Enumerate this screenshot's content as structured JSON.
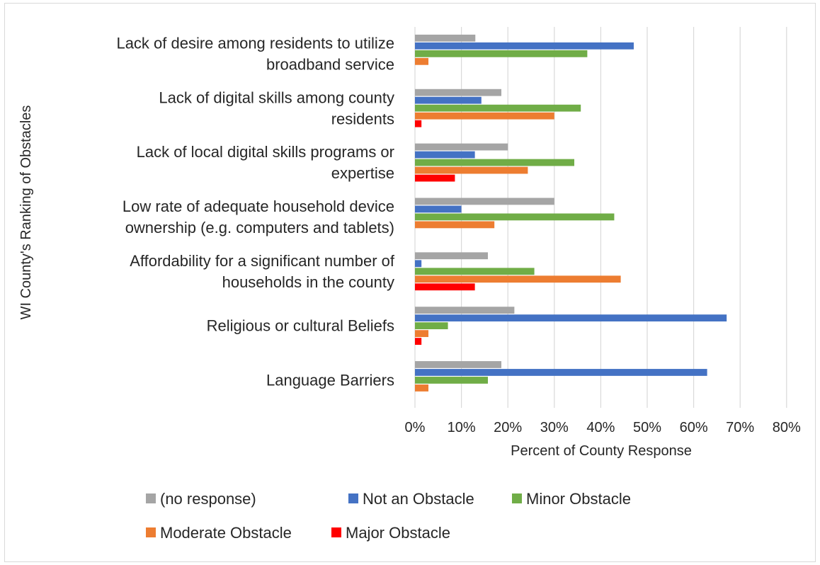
{
  "chart_data": {
    "type": "bar",
    "orientation": "horizontal",
    "title": "",
    "xlabel": "Percent of County Response",
    "ylabel": "WI County's Ranking of Obstacles",
    "xlim": [
      0,
      80
    ],
    "x_ticks": [
      "0%",
      "10%",
      "20%",
      "30%",
      "40%",
      "50%",
      "60%",
      "70%",
      "80%"
    ],
    "grid": "vertical",
    "legend_position": "bottom",
    "categories": [
      [
        "Lack of desire among residents to utilize",
        "broadband service"
      ],
      [
        "Lack of digital skills among county",
        "residents"
      ],
      [
        "Lack of local digital skills programs or",
        "expertise"
      ],
      [
        "Low rate of adequate household device",
        "ownership (e.g. computers and tablets)"
      ],
      [
        "Affordability for a significant number of",
        "households in the county"
      ],
      [
        "Religious or cultural Beliefs"
      ],
      [
        "Language Barriers"
      ]
    ],
    "series": [
      {
        "name": "(no response)",
        "color": "#a5a5a5",
        "values": [
          13,
          18.6,
          20,
          30,
          15.7,
          21.4,
          18.6
        ]
      },
      {
        "name": "Not an Obstacle",
        "color": "#4472c4",
        "values": [
          47.1,
          14.3,
          12.9,
          10,
          1.4,
          67.1,
          62.9
        ]
      },
      {
        "name": "Minor Obstacle",
        "color": "#70ad47",
        "values": [
          37.1,
          35.7,
          34.3,
          42.9,
          25.7,
          7.1,
          15.7
        ]
      },
      {
        "name": "Moderate Obstacle",
        "color": "#ed7d31",
        "values": [
          2.9,
          30,
          24.3,
          17.1,
          44.3,
          2.9,
          2.9
        ]
      },
      {
        "name": "Major Obstacle",
        "color": "#ff0000",
        "values": [
          0,
          1.4,
          8.6,
          0,
          12.9,
          1.4,
          0
        ]
      }
    ]
  }
}
